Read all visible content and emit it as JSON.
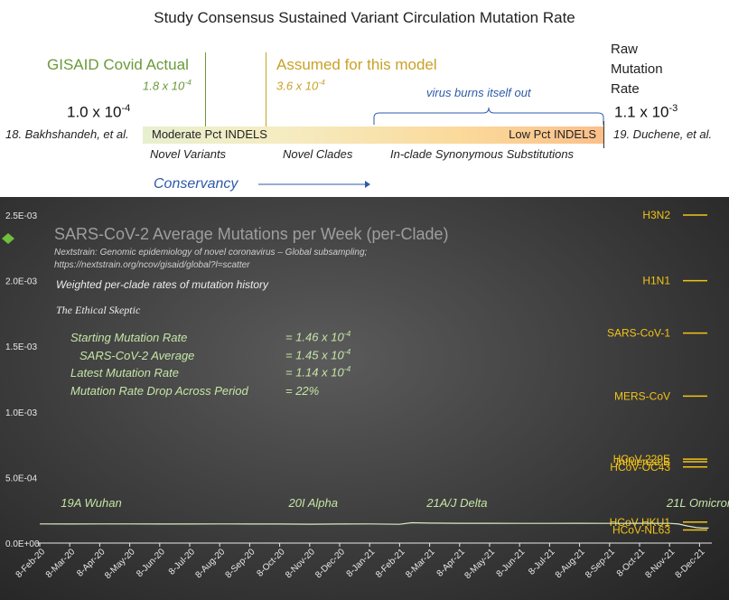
{
  "header": {
    "title": "Study Consensus Sustained Variant Circulation Mutation Rate",
    "gisaid_label": "GISAID Covid Actual",
    "gisaid_value": "1.8 x 10",
    "gisaid_exp": "-4",
    "assumed_label": "Assumed for this model",
    "assumed_value": "3.6 x 10",
    "assumed_exp": "-4",
    "burn_label": "virus burns itself out",
    "raw_label_1": "Raw",
    "raw_label_2": "Mutation",
    "raw_label_3": "Rate",
    "left_rate": "1.0 x 10",
    "left_exp": "-4",
    "right_rate": "1.1 x 10",
    "right_exp": "-3",
    "left_ref": "18. Bakhshandeh, et al.",
    "right_ref": "19. Duchene, et al.",
    "bar_left_label": "Moderate Pct INDELS",
    "bar_right_label": "Low Pct INDELS",
    "below_1": "Novel Variants",
    "below_2": "Novel Clades",
    "below_3": "In-clade Synonymous Substitutions",
    "conservancy": "Conservancy",
    "colors": {
      "green": "#6a9a3a",
      "gold": "#c9a227",
      "blue": "#2f5aa8"
    }
  },
  "panel": {
    "stats": {
      "start_label": "Starting Mutation Rate",
      "start_value": "= 1.46 x 10",
      "start_exp": "-4",
      "avg_label": "SARS-CoV-2 Average",
      "avg_value": "= 1.45 x 10",
      "avg_exp": "-4",
      "latest_label": "Latest Mutation Rate",
      "latest_value": "= 1.14 x 10",
      "latest_exp": "-4",
      "drop_label": "Mutation Rate Drop Across Period",
      "drop_value": "= 22%"
    }
  },
  "chart_data": {
    "type": "line",
    "title": "SARS-CoV-2 Average Mutations per Week (per-Clade)",
    "source_line_1": "Nextstrain: Genomic epidemiology of novel coronavirus – Global subsampling;",
    "source_line_2": "https://nextstrain.org/ncov/gisaid/global?l=scatter",
    "subtitle": "Weighted per-clade rates of mutation history",
    "credit": "The Ethical Skeptic",
    "y_ticks": [
      "2.5E-03",
      "2.0E-03",
      "1.5E-03",
      "1.0E-03",
      "5.0E-04",
      "0.0E+00"
    ],
    "y_tick_values": [
      0.0025,
      0.002,
      0.0015,
      0.001,
      0.0005,
      0
    ],
    "ylim": [
      0,
      0.0025
    ],
    "x_ticks": [
      "8-Feb-20",
      "8-Mar-20",
      "8-Apr-20",
      "8-May-20",
      "8-Jun-20",
      "8-Jul-20",
      "8-Aug-20",
      "8-Sep-20",
      "8-Oct-20",
      "8-Nov-20",
      "8-Dec-20",
      "8-Jan-21",
      "8-Feb-21",
      "8-Mar-21",
      "8-Apr-21",
      "8-May-21",
      "8-Jun-21",
      "8-Jul-21",
      "8-Aug-21",
      "8-Sep-21",
      "8-Oct-21",
      "8-Nov-21",
      "8-Dec-21"
    ],
    "clades": [
      {
        "name": "19A Wuhan",
        "month": 0.7
      },
      {
        "name": "20I Alpha",
        "month": 8.3
      },
      {
        "name": "21A/J Delta",
        "month": 12.9
      },
      {
        "name": "21L Omicron",
        "month": 20.9
      }
    ],
    "series": [
      {
        "name": "SARS-CoV-2",
        "x": [
          0,
          1,
          2,
          3,
          4,
          5,
          6,
          7,
          8,
          9,
          10,
          11,
          12,
          12.4,
          13,
          14,
          15,
          16,
          17,
          18,
          19,
          20,
          21,
          21.3,
          21.6,
          21.9,
          22.1,
          22.3
        ],
        "values": [
          0.000146,
          0.000145,
          0.000146,
          0.000146,
          0.000145,
          0.000145,
          0.000146,
          0.000145,
          0.000145,
          0.000144,
          0.000145,
          0.000146,
          0.000143,
          0.000155,
          0.000152,
          0.000151,
          0.000151,
          0.00015,
          0.00015,
          0.000151,
          0.00015,
          0.000151,
          0.00015,
          0.000145,
          0.00013,
          0.000118,
          0.000114,
          0.000114
        ]
      }
    ],
    "reference_rates": [
      {
        "name": "H3N2",
        "value": 0.0025
      },
      {
        "name": "H1N1",
        "value": 0.002
      },
      {
        "name": "SARS-CoV-1",
        "value": 0.0016
      },
      {
        "name": "MERS-CoV",
        "value": 0.00112
      },
      {
        "name": "HCoV-229E",
        "value": 0.00064
      },
      {
        "name": "Influenza B",
        "value": 0.00062
      },
      {
        "name": "HCoV-OC43",
        "value": 0.00058
      },
      {
        "name": "HCoV-HKU1",
        "value": 0.00016
      },
      {
        "name": "HCoV-NL63",
        "value": 0.0001
      }
    ],
    "colors": {
      "reference": "#f2c318",
      "series": "#d9ecc6",
      "labels": "#c5e6a6",
      "axis": "#e8e8e8"
    }
  }
}
